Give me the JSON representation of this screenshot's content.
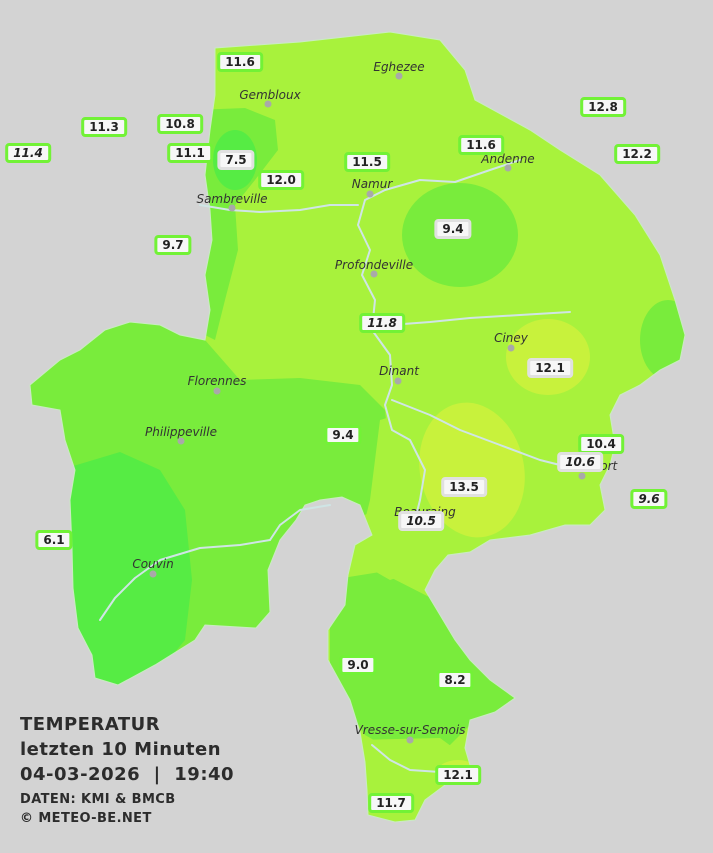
{
  "legend": {
    "title": "TEMPERATUR",
    "subtitle": "letzten 10 Minuten",
    "datetime": "04-03-2026  |  19:40",
    "source": "DATEN: KMI & BMCB",
    "copyright": "© METEO-BE.NET"
  },
  "colors": {
    "background": "#d3d3d3",
    "zone_yellowgreen": "#a8f23c",
    "zone_green": "#79ec3c",
    "zone_darkgreen": "#56ec44",
    "zone_yellow": "#c8f23c",
    "station_border": "#72f236",
    "river": "#cfe5e5"
  },
  "cities": [
    {
      "name": "Eghezee"
    },
    {
      "name": "Gembloux"
    },
    {
      "name": "Andenne"
    },
    {
      "name": "Namur"
    },
    {
      "name": "Sambreville"
    },
    {
      "name": "Profondeville"
    },
    {
      "name": "Ciney"
    },
    {
      "name": "Dinant"
    },
    {
      "name": "Florennes"
    },
    {
      "name": "Philippeville"
    },
    {
      "name": "Rochefort"
    },
    {
      "name": "Beauraing"
    },
    {
      "name": "Couvin"
    },
    {
      "name": "Vresse-sur-Semois"
    }
  ],
  "stations": [
    {
      "value": "11.6"
    },
    {
      "value": "12.8"
    },
    {
      "value": "11.3"
    },
    {
      "value": "10.8"
    },
    {
      "value": "11.4"
    },
    {
      "value": "11.1"
    },
    {
      "value": "7.5"
    },
    {
      "value": "11.5"
    },
    {
      "value": "11.6"
    },
    {
      "value": "12.2"
    },
    {
      "value": "12.0"
    },
    {
      "value": "9.4"
    },
    {
      "value": "9.7"
    },
    {
      "value": "11.8"
    },
    {
      "value": "12.1"
    },
    {
      "value": "9.4"
    },
    {
      "value": "10.4"
    },
    {
      "value": "10.6"
    },
    {
      "value": "13.5"
    },
    {
      "value": "9.6"
    },
    {
      "value": "10.5"
    },
    {
      "value": "6.1"
    },
    {
      "value": "9.0"
    },
    {
      "value": "8.2"
    },
    {
      "value": "12.1"
    },
    {
      "value": "11.7"
    }
  ]
}
